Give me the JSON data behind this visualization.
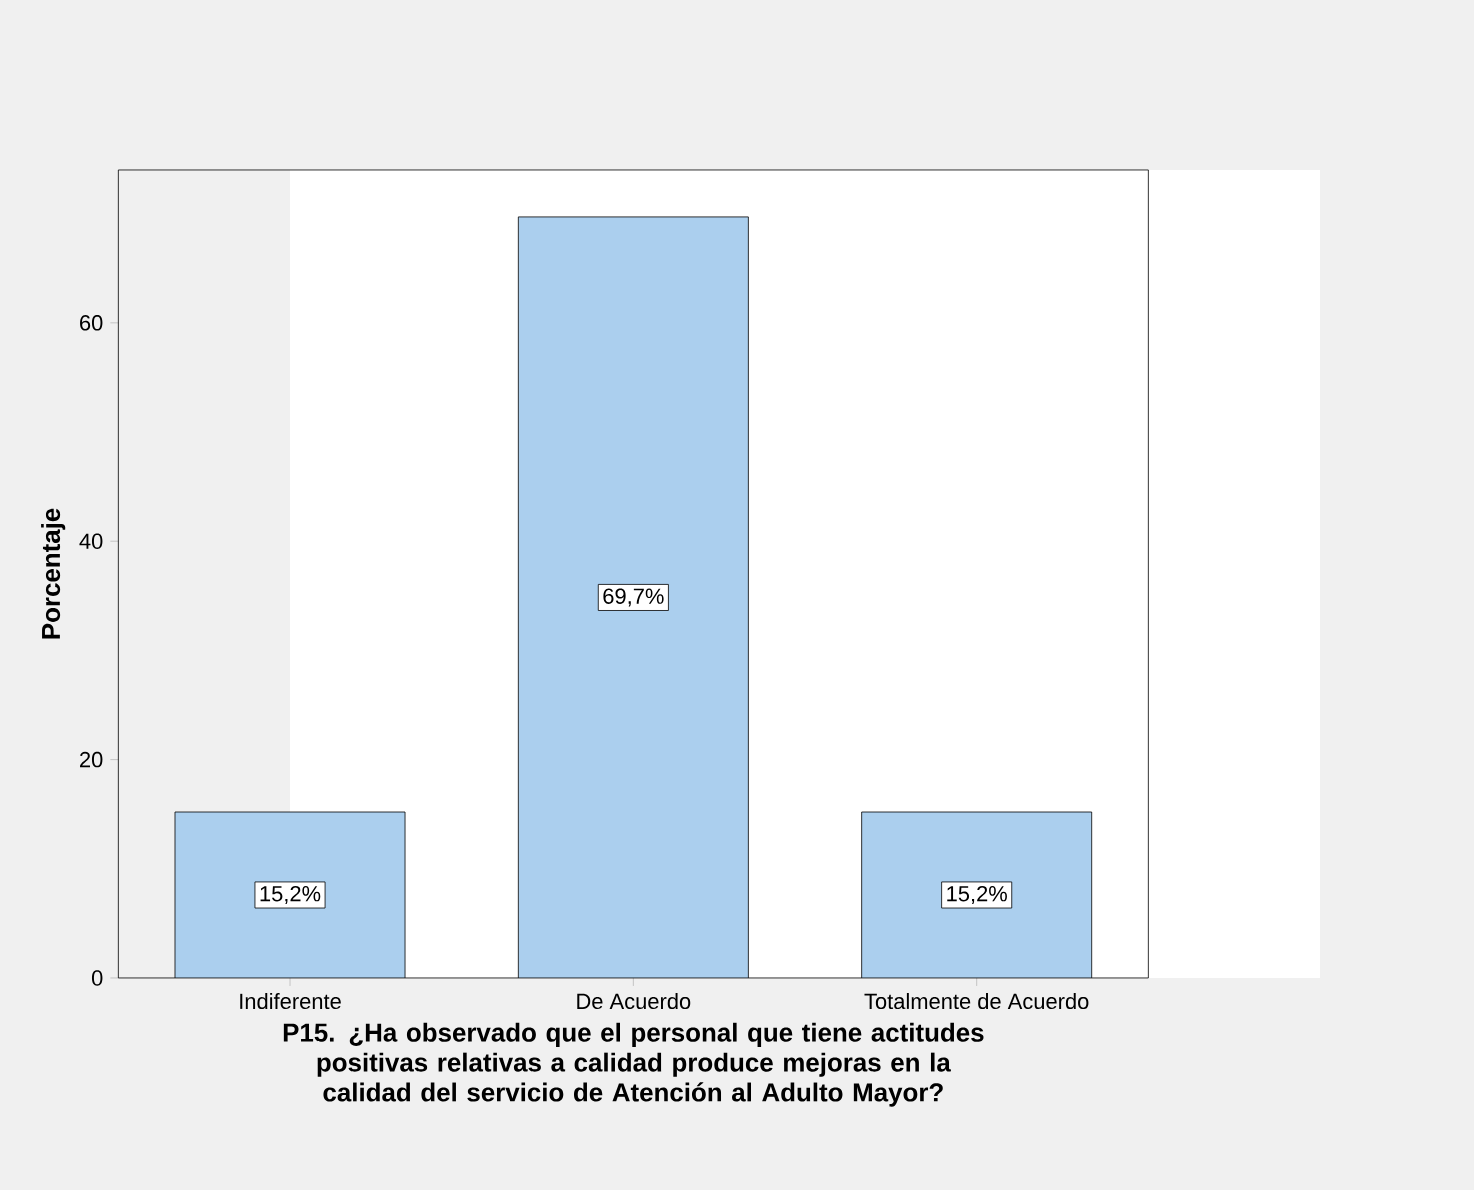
{
  "chart_data": {
    "type": "bar",
    "xlabel": "P15. ¿Ha observado que el personal que tiene actitudes positivas relativas a calidad produce mejoras en la calidad del servicio de Atención al Adulto Mayor?",
    "ylabel": "Porcentaje",
    "categories": [
      "Indiferente",
      "De Acuerdo",
      "Totalmente de Acuerdo"
    ],
    "values": [
      15.2,
      69.7,
      15.2
    ],
    "value_labels": [
      "15,2%",
      "69,7%",
      "15,2%"
    ],
    "color": "#abcfee",
    "ylim": [
      0,
      74
    ],
    "yticks": [
      0,
      20,
      40,
      60
    ]
  }
}
